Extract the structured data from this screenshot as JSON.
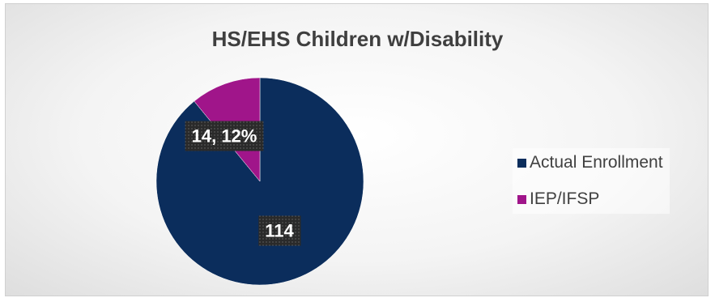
{
  "chart_data": {
    "type": "pie",
    "title": "HS/EHS Children w/Disability",
    "slices": [
      {
        "name": "Actual Enrollment",
        "value": 114,
        "label": "114",
        "color": "#0b2d5c"
      },
      {
        "name": "IEP/IFSP",
        "value": 14,
        "label": "14, 12%",
        "color": "#a0158a"
      }
    ],
    "legend_position": "right"
  }
}
